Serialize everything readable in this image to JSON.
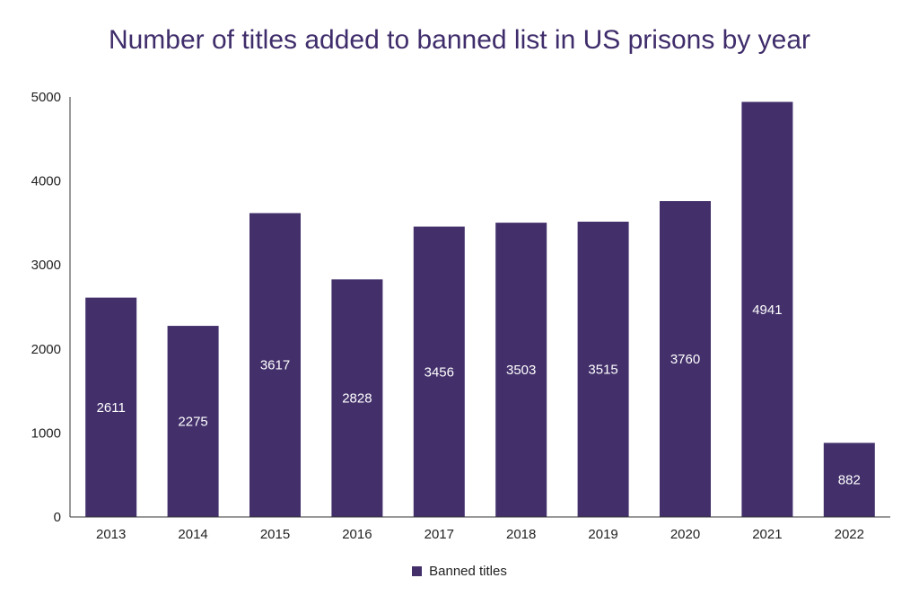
{
  "chart_data": {
    "type": "bar",
    "title": "Number of titles added to banned list in US prisons by year",
    "categories": [
      "2013",
      "2014",
      "2015",
      "2016",
      "2017",
      "2018",
      "2019",
      "2020",
      "2021",
      "2022"
    ],
    "series": [
      {
        "name": "Banned titles",
        "values": [
          2611,
          2275,
          3617,
          2828,
          3456,
          3503,
          3515,
          3760,
          4941,
          882
        ]
      }
    ],
    "ylim": [
      0,
      5000
    ],
    "yticks": [
      0,
      1000,
      2000,
      3000,
      4000,
      5000
    ],
    "grid": false,
    "legend_position": "bottom",
    "data_labels": true,
    "colors": {
      "bar": "#43306b",
      "title": "#3f2d6b",
      "text": "#222222",
      "axis": "#333333",
      "label": "#ffffff"
    }
  }
}
